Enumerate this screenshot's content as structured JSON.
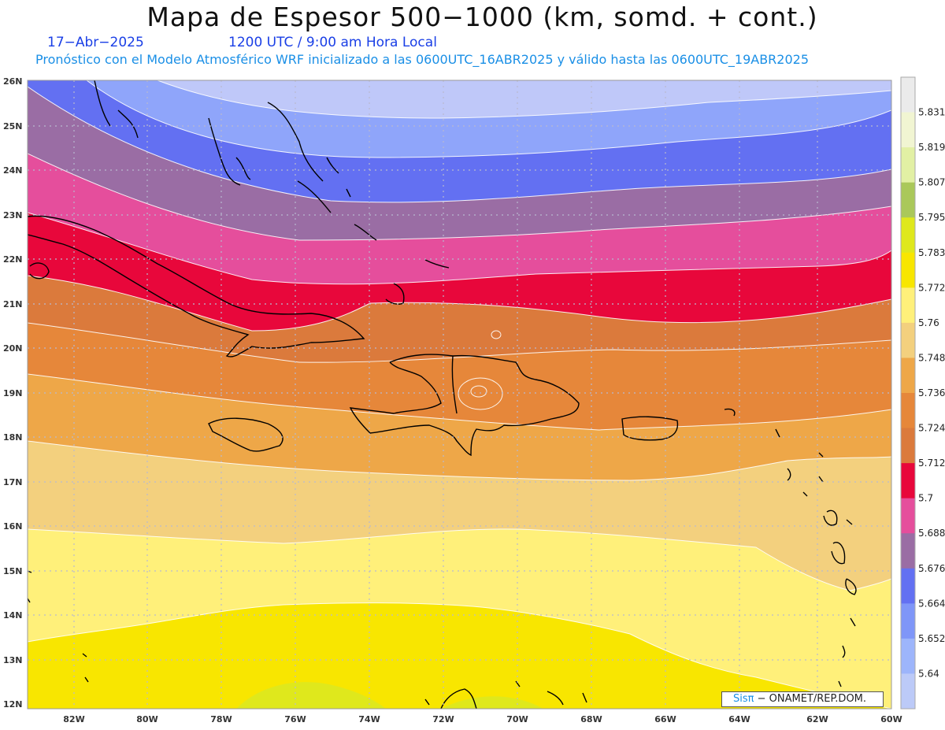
{
  "header": {
    "title": "Mapa de Espesor 500−1000 (km, somd. + cont.)",
    "date": "17−Abr−2025",
    "time": "1200 UTC / 9:00 am Hora Local",
    "forecast": "Pronóstico con el Modelo Atmosférico WRF inicializado a las 0600UTC_16ABR2025 y válido hasta las  0600UTC_19ABR2025"
  },
  "credit": {
    "logo": "Sisπ",
    "text": "− ONAMET/REP.DOM."
  },
  "map": {
    "lon_ticks": [
      "82W",
      "80W",
      "78W",
      "76W",
      "74W",
      "72W",
      "70W",
      "68W",
      "66W",
      "64W",
      "62W",
      "60W"
    ],
    "lat_ticks": [
      "26N",
      "25N",
      "24N",
      "23N",
      "22N",
      "21N",
      "20N",
      "19N",
      "18N",
      "17N",
      "16N",
      "15N",
      "14N",
      "13N",
      "12N"
    ]
  },
  "colorbar": {
    "labels": [
      "5.831",
      "5.819",
      "5.807",
      "5.795",
      "5.783",
      "5.772",
      "5.76",
      "5.748",
      "5.736",
      "5.724",
      "5.712",
      "5.7",
      "5.688",
      "5.676",
      "5.664",
      "5.652",
      "5.64"
    ],
    "colors": [
      "#ebebeb",
      "#f1f5d2",
      "#e2f0a4",
      "#aac85a",
      "#dfe81c",
      "#f8e600",
      "#fff07a",
      "#f3d07e",
      "#eea748",
      "#e6873a",
      "#db7a3c",
      "#e8073b",
      "#e54e9c",
      "#9a6da4",
      "#6370f2",
      "#7f96f8",
      "#9db5fb",
      "#bccaf8"
    ]
  },
  "colors": {
    "band_25": "#bfc8f9",
    "band_24": "#8fa5fa",
    "band_23": "#6370f2",
    "band_22": "#9a6da4",
    "band_21": "#e54e9c",
    "band_20": "#e8073b",
    "band_19": "#db7a3c",
    "band_18": "#e6873a",
    "band_17": "#eea748",
    "band_16": "#f3d07e",
    "band_15": "#fff07a",
    "band_14": "#f8e600",
    "band_13": "#dfe81c"
  }
}
